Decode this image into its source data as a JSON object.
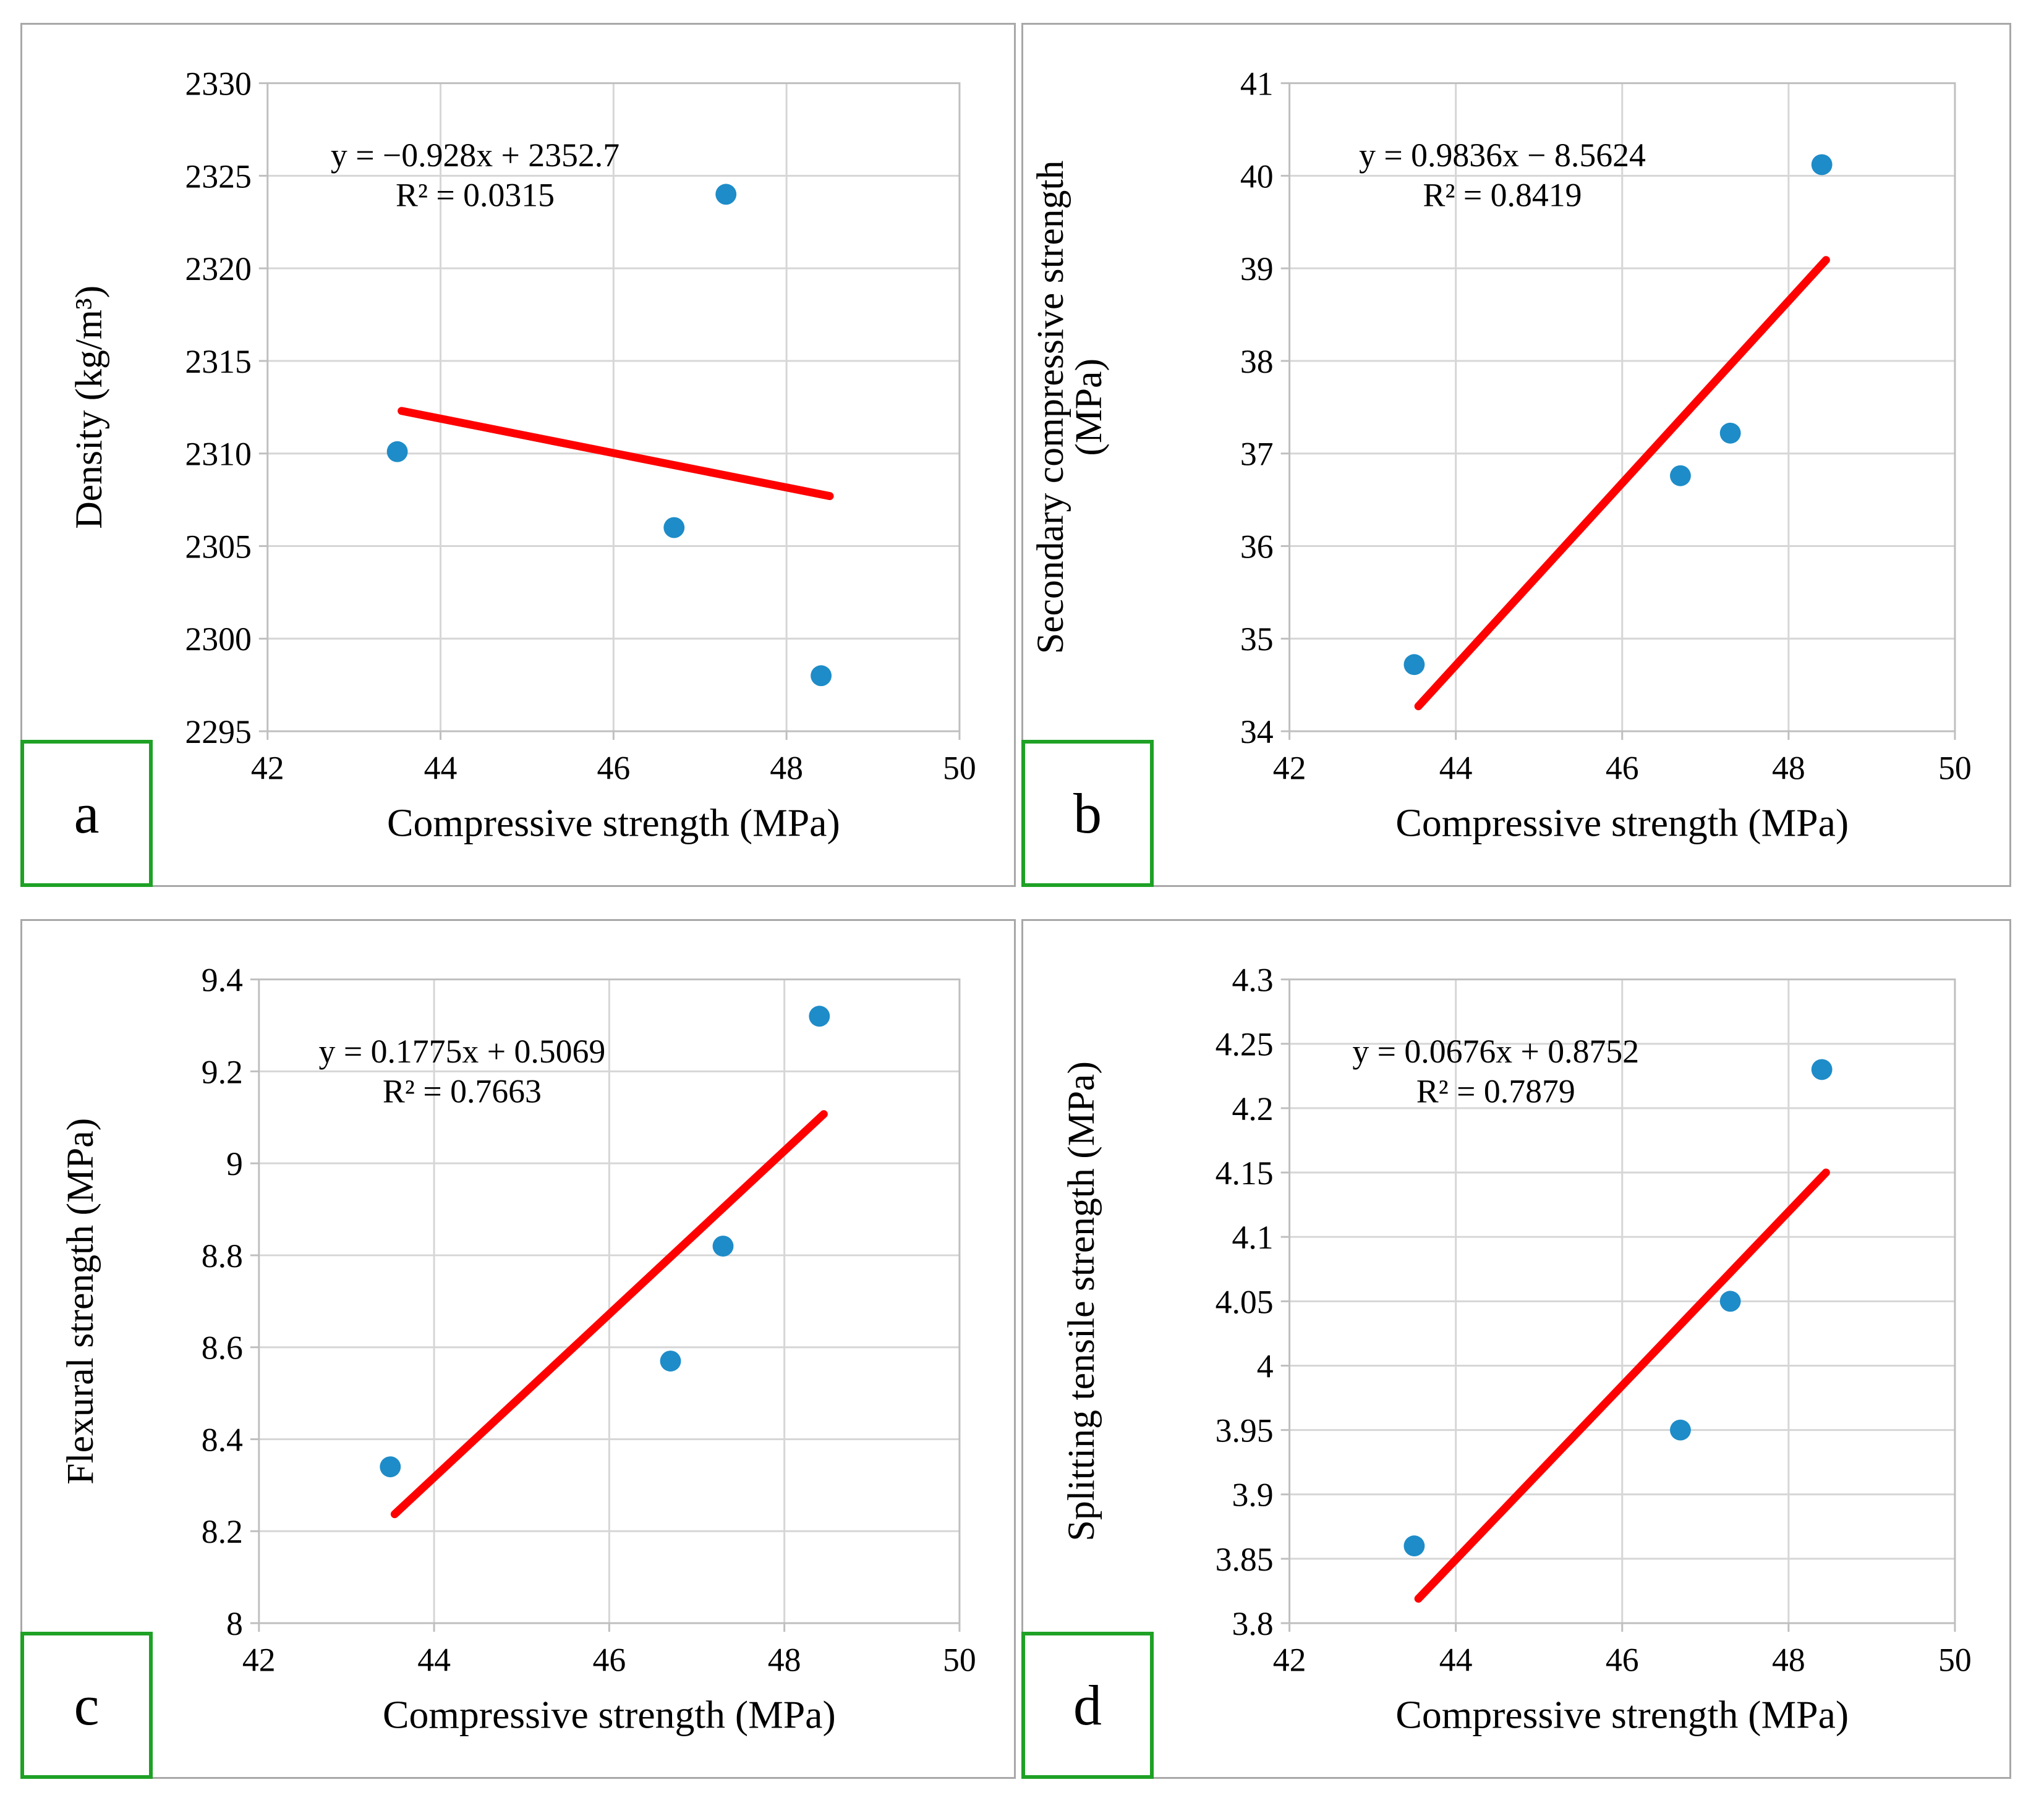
{
  "colors": {
    "marker": "#1e8cc8",
    "trendline": "#fe0000",
    "gridline": "#d6d6d6",
    "plot_border": "#bfbfbf",
    "panel_border": "#a8a8a8",
    "letter_box_border": "#1ea125",
    "text": "#000000"
  },
  "chart_data": [
    {
      "type": "scatter",
      "panel_label": "a",
      "xlabel": "Compressive strength (MPa)",
      "ylabel_lines": [
        "Density (kg/m³)"
      ],
      "equation": "y = −0.928x + 2352.7",
      "r_squared_label": "R² = 0.0315",
      "xlim": [
        42,
        50
      ],
      "ylim": [
        2295,
        2330
      ],
      "x_ticks": [
        42,
        44,
        46,
        48,
        50
      ],
      "x_tick_labels": [
        "42",
        "44",
        "46",
        "48",
        "50"
      ],
      "y_ticks": [
        2295,
        2300,
        2305,
        2310,
        2315,
        2320,
        2325,
        2330
      ],
      "y_tick_labels": [
        "2295",
        "2300",
        "2305",
        "2310",
        "2315",
        "2320",
        "2325",
        "2330"
      ],
      "points": [
        [
          43.5,
          2310.1
        ],
        [
          46.7,
          2306.0
        ],
        [
          47.3,
          2324.0
        ],
        [
          48.4,
          2298.0
        ]
      ],
      "trendline": {
        "x1": 43.55,
        "y1": 2312.3,
        "x2": 48.5,
        "y2": 2307.7
      },
      "grid": true,
      "legend": "none"
    },
    {
      "type": "scatter",
      "panel_label": "b",
      "xlabel": "Compressive strength (MPa)",
      "ylabel_lines": [
        "Secondary compressive strength",
        "(MPa)"
      ],
      "equation": "y = 0.9836x − 8.5624",
      "r_squared_label": "R² = 0.8419",
      "xlim": [
        42,
        50
      ],
      "ylim": [
        34,
        41
      ],
      "x_ticks": [
        42,
        44,
        46,
        48,
        50
      ],
      "x_tick_labels": [
        "42",
        "44",
        "46",
        "48",
        "50"
      ],
      "y_ticks": [
        34,
        35,
        36,
        37,
        38,
        39,
        40,
        41
      ],
      "y_tick_labels": [
        "34",
        "35",
        "36",
        "37",
        "38",
        "39",
        "40",
        "41"
      ],
      "points": [
        [
          43.5,
          34.72
        ],
        [
          46.7,
          36.76
        ],
        [
          47.3,
          37.22
        ],
        [
          48.4,
          40.12
        ]
      ],
      "trendline": {
        "x1": 43.55,
        "y1": 34.27,
        "x2": 48.45,
        "y2": 39.09
      },
      "grid": true,
      "legend": "none"
    },
    {
      "type": "scatter",
      "panel_label": "c",
      "xlabel": "Compressive strength (MPa)",
      "ylabel_lines": [
        "Flexural strength (MPa)"
      ],
      "equation": "y = 0.1775x + 0.5069",
      "r_squared_label": "R² = 0.7663",
      "xlim": [
        42,
        50
      ],
      "ylim": [
        8,
        9.4
      ],
      "x_ticks": [
        42,
        44,
        46,
        48,
        50
      ],
      "x_tick_labels": [
        "42",
        "44",
        "46",
        "48",
        "50"
      ],
      "y_ticks": [
        8,
        8.2,
        8.4,
        8.6,
        8.8,
        9,
        9.2,
        9.4
      ],
      "y_tick_labels": [
        "8",
        "8.2",
        "8.4",
        "8.6",
        "8.8",
        "9",
        "9.2",
        "9.4"
      ],
      "points": [
        [
          43.5,
          8.34
        ],
        [
          46.7,
          8.57
        ],
        [
          47.3,
          8.82
        ],
        [
          48.4,
          9.32
        ]
      ],
      "trendline": {
        "x1": 43.55,
        "y1": 8.237,
        "x2": 48.45,
        "y2": 9.107
      },
      "grid": true,
      "legend": "none"
    },
    {
      "type": "scatter",
      "panel_label": "d",
      "xlabel": "Compressive strength (MPa)",
      "ylabel_lines": [
        "Splitting tensile strength (MPa)"
      ],
      "equation": "y = 0.0676x + 0.8752",
      "r_squared_label": "R² = 0.7879",
      "xlim": [
        42,
        50
      ],
      "ylim": [
        3.8,
        4.3
      ],
      "x_ticks": [
        42,
        44,
        46,
        48,
        50
      ],
      "x_tick_labels": [
        "42",
        "44",
        "46",
        "48",
        "50"
      ],
      "y_ticks": [
        3.8,
        3.85,
        3.9,
        3.95,
        4,
        4.05,
        4.1,
        4.15,
        4.2,
        4.25,
        4.3
      ],
      "y_tick_labels": [
        "3.8",
        "3.85",
        "3.9",
        "3.95",
        "4",
        "4.05",
        "4.1",
        "4.15",
        "4.2",
        "4.25",
        "4.3"
      ],
      "points": [
        [
          43.5,
          3.86
        ],
        [
          46.7,
          3.95
        ],
        [
          47.3,
          4.05
        ],
        [
          48.4,
          4.23
        ]
      ],
      "trendline": {
        "x1": 43.55,
        "y1": 3.819,
        "x2": 48.45,
        "y2": 4.15
      },
      "grid": true,
      "legend": "none"
    }
  ]
}
